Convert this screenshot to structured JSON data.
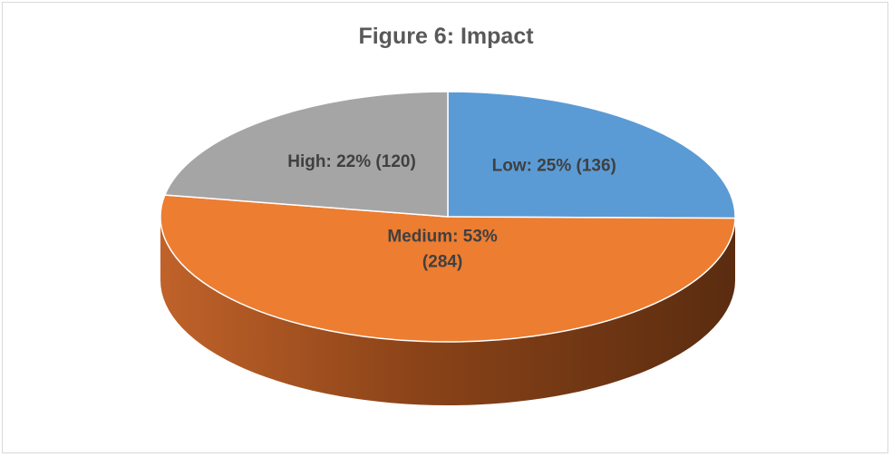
{
  "chart_data": {
    "type": "pie",
    "title": "Figure 6: Impact",
    "categories": [
      "Low",
      "Medium",
      "High"
    ],
    "values": [
      136,
      284,
      120
    ],
    "percentages": [
      25,
      53,
      22
    ],
    "colors": [
      "#5b9bd5",
      "#ed7d31",
      "#a5a5a5"
    ],
    "labels": [
      "Low: 25% (136)",
      "Medium: 53%",
      "High: 22% (120)"
    ],
    "label_continuations": [
      "",
      "(284)",
      ""
    ],
    "style": "3d"
  }
}
